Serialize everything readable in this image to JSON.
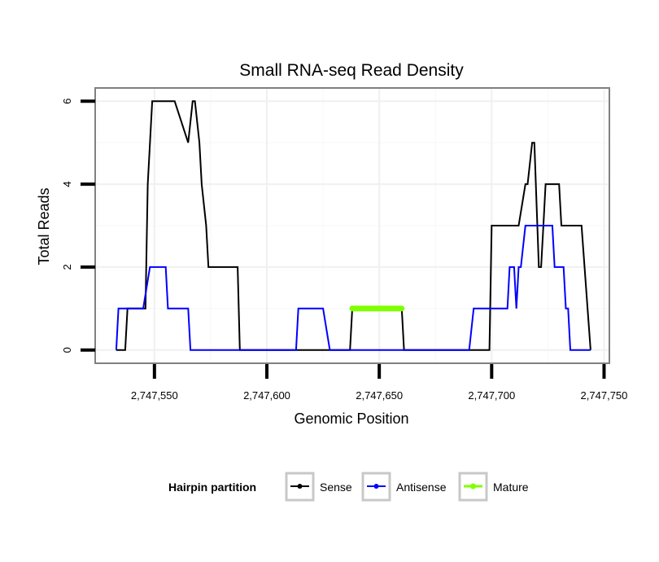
{
  "chart_data": {
    "type": "line",
    "title": "Small RNA-seq Read Density",
    "xlabel": "Genomic Position",
    "ylabel": "Total Reads",
    "xlim": [
      2747524,
      2747752
    ],
    "ylim": [
      -0.3,
      6.3
    ],
    "x_ticks": [
      2747550,
      2747600,
      2747650,
      2747700,
      2747750
    ],
    "x_tick_labels": [
      "2,747,550",
      "2,747,600",
      "2,747,650",
      "2,747,700",
      "2,747,750"
    ],
    "y_ticks": [
      0,
      2,
      4,
      6
    ],
    "y_tick_labels": [
      "0",
      "2",
      "4",
      "6"
    ],
    "grid": true,
    "legend": {
      "title": "Hairpin partition",
      "position": "bottom",
      "entries": [
        "Sense",
        "Antisense",
        "Mature"
      ]
    },
    "series": [
      {
        "name": "Sense",
        "color": "#000000",
        "x": [
          2747533,
          2747537,
          2747538,
          2747546,
          2747547,
          2747549,
          2747552,
          2747559,
          2747565,
          2747567,
          2747568,
          2747570,
          2747571,
          2747573,
          2747574,
          2747575,
          2747580,
          2747587,
          2747588,
          2747590,
          2747600,
          2747620,
          2747637,
          2747638,
          2747660,
          2747661,
          2747680,
          2747699,
          2747700,
          2747710,
          2747712,
          2747715,
          2747716,
          2747718,
          2747719,
          2747721,
          2747722,
          2747723,
          2747724,
          2747725,
          2747730,
          2747731,
          2747735,
          2747740,
          2747744
        ],
        "y": [
          0,
          0,
          1,
          1,
          4,
          6,
          6,
          6,
          5,
          6,
          6,
          5,
          4,
          3,
          2,
          2,
          2,
          2,
          0,
          0,
          0,
          0,
          0,
          1,
          1,
          0,
          0,
          0,
          3,
          3,
          3,
          4,
          4,
          5,
          5,
          2,
          2,
          3,
          4,
          4,
          4,
          3,
          3,
          3,
          0
        ]
      },
      {
        "name": "Antisense",
        "color": "#0000ff",
        "x": [
          2747533,
          2747534,
          2747542,
          2747543,
          2747545,
          2747548,
          2747549,
          2747555,
          2747556,
          2747565,
          2747566,
          2747600,
          2747613,
          2747614,
          2747625,
          2747628,
          2747650,
          2747660,
          2747690,
          2747692,
          2747700,
          2747707,
          2747708,
          2747710,
          2747711,
          2747712,
          2747713,
          2747715,
          2747716,
          2747727,
          2747728,
          2747732,
          2747733,
          2747734,
          2747735,
          2747744
        ],
        "y": [
          0,
          1,
          1,
          1,
          1,
          2,
          2,
          2,
          1,
          1,
          0,
          0,
          0,
          1,
          1,
          0,
          0,
          0,
          0,
          1,
          1,
          1,
          2,
          2,
          1,
          2,
          2,
          3,
          3,
          3,
          2,
          2,
          1,
          1,
          0,
          0
        ]
      },
      {
        "name": "Mature",
        "color": "#7fff00",
        "x": [
          2747638,
          2747660
        ],
        "y": [
          1,
          1
        ]
      }
    ]
  }
}
